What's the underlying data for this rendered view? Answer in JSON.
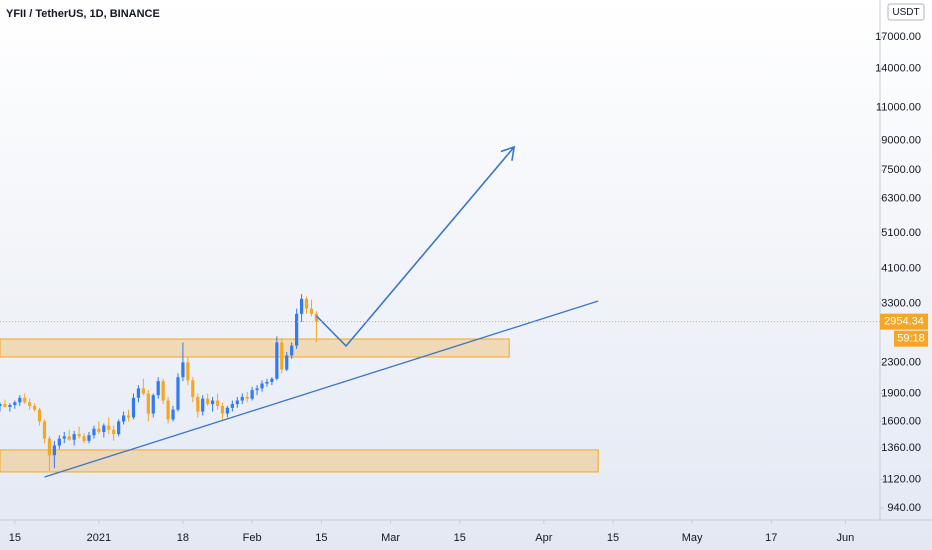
{
  "chart_data": {
    "type": "candlestick",
    "title": "YFII / TetherUS, 1D, BINANCE",
    "currency": "USDT",
    "countdown": "59:18",
    "log_scale": true,
    "up_color": "#3179f5",
    "down_color": "#f5a623",
    "zone_color": "#f5a623",
    "line_color": "#3a76c9",
    "xlim": [
      "2020-12-12",
      "2021-06-08"
    ],
    "ylim": [
      873,
      21340
    ],
    "xticks": [
      {
        "value": "2020-12-15",
        "label": "15"
      },
      {
        "value": "2021-01-01",
        "label": "2021"
      },
      {
        "value": "2021-01-18",
        "label": "18"
      },
      {
        "value": "2021-02-01",
        "label": "Feb"
      },
      {
        "value": "2021-02-15",
        "label": "15"
      },
      {
        "value": "2021-03-01",
        "label": "Mar"
      },
      {
        "value": "2021-03-15",
        "label": "15"
      },
      {
        "value": "2021-04-01",
        "label": "Apr"
      },
      {
        "value": "2021-04-15",
        "label": "15"
      },
      {
        "value": "2021-05-01",
        "label": "May"
      },
      {
        "value": "2021-05-17",
        "label": "17"
      },
      {
        "value": "2021-06-01",
        "label": "Jun"
      }
    ],
    "yticks": [
      {
        "value": 940,
        "label": "940.00"
      },
      {
        "value": 1120,
        "label": "1120.00"
      },
      {
        "value": 1360,
        "label": "1360.00"
      },
      {
        "value": 1600,
        "label": "1600.00"
      },
      {
        "value": 1900,
        "label": "1900.00"
      },
      {
        "value": 2300,
        "label": "2300.00"
      },
      {
        "value": 3300,
        "label": "3300.00"
      },
      {
        "value": 4100,
        "label": "4100.00"
      },
      {
        "value": 5100,
        "label": "5100.00"
      },
      {
        "value": 6300,
        "label": "6300.00"
      },
      {
        "value": 7500,
        "label": "7500.00"
      },
      {
        "value": 9000,
        "label": "9000.00"
      },
      {
        "value": 11000,
        "label": "11000.00"
      },
      {
        "value": 14000,
        "label": "14000.00"
      },
      {
        "value": 17000,
        "label": "17000.00"
      }
    ],
    "x": [
      "2020-12-12",
      "2020-12-13",
      "2020-12-14",
      "2020-12-15",
      "2020-12-16",
      "2020-12-17",
      "2020-12-18",
      "2020-12-19",
      "2020-12-20",
      "2020-12-21",
      "2020-12-22",
      "2020-12-23",
      "2020-12-24",
      "2020-12-25",
      "2020-12-26",
      "2020-12-27",
      "2020-12-28",
      "2020-12-29",
      "2020-12-30",
      "2020-12-31",
      "2021-01-01",
      "2021-01-02",
      "2021-01-03",
      "2021-01-04",
      "2021-01-05",
      "2021-01-06",
      "2021-01-07",
      "2021-01-08",
      "2021-01-09",
      "2021-01-10",
      "2021-01-11",
      "2021-01-12",
      "2021-01-13",
      "2021-01-14",
      "2021-01-15",
      "2021-01-16",
      "2021-01-17",
      "2021-01-18",
      "2021-01-19",
      "2021-01-20",
      "2021-01-21",
      "2021-01-22",
      "2021-01-23",
      "2021-01-24",
      "2021-01-25",
      "2021-01-26",
      "2021-01-27",
      "2021-01-28",
      "2021-01-29",
      "2021-01-30",
      "2021-01-31",
      "2021-02-01",
      "2021-02-02",
      "2021-02-03",
      "2021-02-04",
      "2021-02-05",
      "2021-02-06",
      "2021-02-07",
      "2021-02-08",
      "2021-02-09",
      "2021-02-10",
      "2021-02-11",
      "2021-02-12",
      "2021-02-13",
      "2021-02-14"
    ],
    "open": [
      1760,
      1780,
      1750,
      1770,
      1800,
      1850,
      1800,
      1760,
      1720,
      1600,
      1440,
      1300,
      1380,
      1440,
      1460,
      1430,
      1480,
      1460,
      1420,
      1470,
      1530,
      1500,
      1560,
      1520,
      1480,
      1600,
      1660,
      1640,
      1850,
      1960,
      1900,
      1680,
      1880,
      2050,
      1820,
      1620,
      1720,
      2100,
      2300,
      2060,
      1860,
      1700,
      1840,
      1780,
      1820,
      1760,
      1680,
      1740,
      1780,
      1820,
      1860,
      1840,
      1940,
      1960,
      2020,
      2040,
      2080,
      2600,
      2200,
      2400,
      2550,
      3100,
      3400,
      3200,
      3100
    ],
    "high": [
      1800,
      1830,
      1790,
      1820,
      1880,
      1900,
      1840,
      1790,
      1740,
      1620,
      1460,
      1420,
      1470,
      1500,
      1520,
      1510,
      1550,
      1490,
      1500,
      1560,
      1600,
      1580,
      1640,
      1560,
      1620,
      1700,
      1720,
      1900,
      2000,
      2080,
      1940,
      1900,
      2100,
      2080,
      1860,
      1760,
      2150,
      2600,
      2380,
      2100,
      1900,
      1880,
      1900,
      1860,
      1900,
      1800,
      1760,
      1820,
      1860,
      1900,
      1920,
      1980,
      2000,
      2060,
      2080,
      2100,
      2700,
      2660,
      2450,
      2600,
      3200,
      3500,
      3450,
      3380,
      3150
    ],
    "low": [
      1700,
      1740,
      1700,
      1730,
      1760,
      1780,
      1720,
      1700,
      1560,
      1400,
      1180,
      1200,
      1350,
      1400,
      1420,
      1380,
      1440,
      1400,
      1400,
      1440,
      1480,
      1450,
      1480,
      1420,
      1460,
      1570,
      1600,
      1620,
      1800,
      1880,
      1600,
      1640,
      1840,
      1780,
      1580,
      1600,
      1700,
      2050,
      2000,
      1800,
      1640,
      1660,
      1760,
      1700,
      1720,
      1620,
      1640,
      1700,
      1740,
      1780,
      1800,
      1820,
      1880,
      1920,
      1980,
      2000,
      2060,
      2150,
      2180,
      2350,
      2500,
      2950,
      3100,
      3050,
      2600
    ],
    "close": [
      1780,
      1750,
      1770,
      1800,
      1850,
      1800,
      1760,
      1720,
      1600,
      1440,
      1300,
      1380,
      1440,
      1460,
      1430,
      1480,
      1460,
      1420,
      1470,
      1530,
      1500,
      1560,
      1520,
      1480,
      1600,
      1660,
      1640,
      1850,
      1960,
      1900,
      1680,
      1880,
      2050,
      1820,
      1620,
      1720,
      2100,
      2300,
      2060,
      1860,
      1700,
      1840,
      1780,
      1820,
      1760,
      1680,
      1740,
      1780,
      1820,
      1860,
      1840,
      1940,
      1960,
      2020,
      2040,
      2080,
      2600,
      2200,
      2400,
      2550,
      3100,
      3400,
      3200,
      3100,
      2954.34
    ],
    "zones": [
      {
        "x": [
          "2020-12-12",
          "2021-03-25"
        ],
        "y": [
          2378,
          2656
        ]
      },
      {
        "x": [
          "2020-12-12",
          "2021-04-12"
        ],
        "y": [
          1173,
          1343
        ]
      }
    ],
    "trendline": {
      "x": [
        "2020-12-21",
        "2021-04-12"
      ],
      "y": [
        1137,
        3355
      ]
    },
    "arrow": {
      "x": [
        "2021-02-14",
        "2021-02-20",
        "2021-03-26"
      ],
      "y": [
        3060,
        2544,
        8646
      ]
    }
  }
}
